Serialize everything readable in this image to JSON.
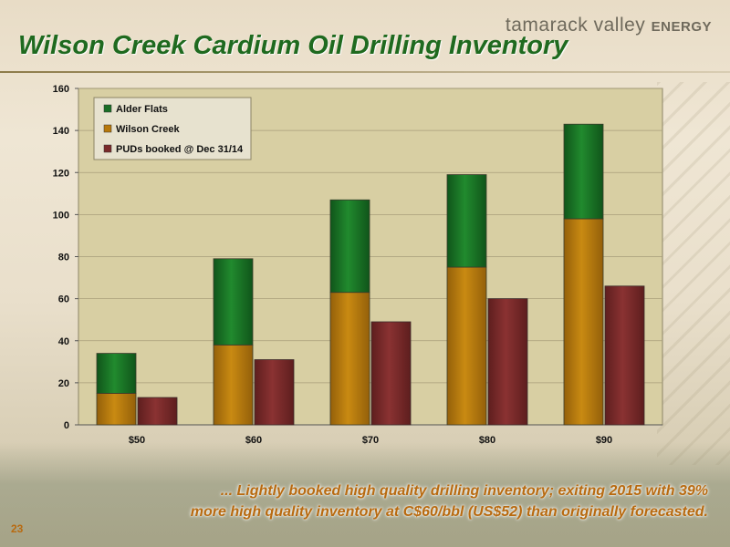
{
  "brand": {
    "name": "tamarack valley",
    "suffix": "ENERGY"
  },
  "title": "Wilson Creek Cardium Oil Drilling Inventory",
  "footnote": {
    "line1": "... Lightly booked high quality drilling inventory; exiting 2015 with 39%",
    "line2": "more high quality inventory at C$60/bbl (US$52) than originally forecasted."
  },
  "page_number": "23",
  "chart_data": {
    "type": "bar",
    "categories": [
      "$50",
      "$60",
      "$70",
      "$80",
      "$90"
    ],
    "stacked_series": [
      {
        "name": "Wilson Creek",
        "color": "#b7780a",
        "values": [
          15,
          38,
          63,
          75,
          98
        ]
      },
      {
        "name": "Alder Flats",
        "color": "#1a6e25",
        "values": [
          19,
          41,
          44,
          44,
          45
        ]
      }
    ],
    "side_series": {
      "name": "PUDs booked @ Dec 31/14",
      "color": "#7a2a2a",
      "values": [
        13,
        31,
        49,
        60,
        66
      ]
    },
    "legend": [
      {
        "name": "Alder Flats",
        "color": "#1a6e25"
      },
      {
        "name": "Wilson Creek",
        "color": "#b7780a"
      },
      {
        "name": "PUDs booked @ Dec 31/14",
        "color": "#7a2a2a"
      }
    ],
    "legend_position": "top-left",
    "ylim": [
      0,
      160
    ],
    "yticks": [
      0,
      20,
      40,
      60,
      80,
      100,
      120,
      140,
      160
    ],
    "grid": true,
    "xlabel": "",
    "ylabel": ""
  }
}
